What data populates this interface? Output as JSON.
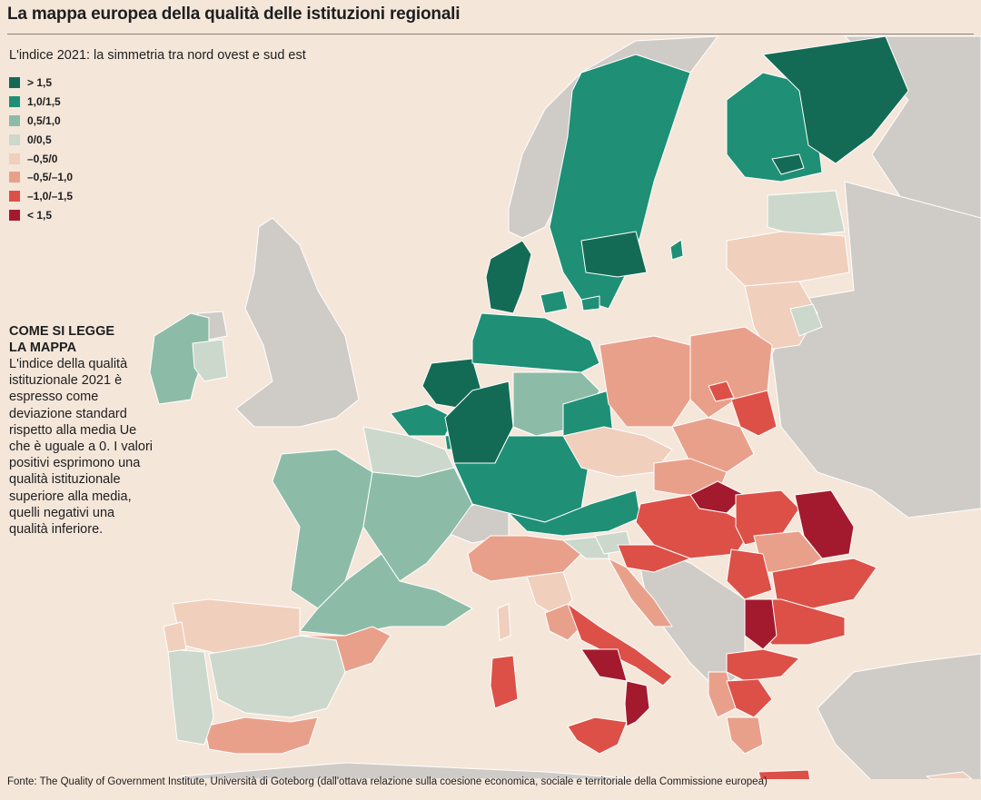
{
  "title": "La mappa europea della qualità delle istituzioni regionali",
  "subtitle": "L'indice 2021: la simmetria tra nord ovest e sud est",
  "colors": {
    "background": "#f5e6da",
    "sea": "#f5e6da",
    "non_eu": "#cfcbc7",
    "border": "#ffffff"
  },
  "legend": [
    {
      "label": "> 1,5",
      "color": "#146b55"
    },
    {
      "label": "1,0/1,5",
      "color": "#1f8f76"
    },
    {
      "label": "0,5/1,0",
      "color": "#8cbca8"
    },
    {
      "label": "0/0,5",
      "color": "#ccd8cc"
    },
    {
      "label": "–0,5/0",
      "color": "#f0cfbd"
    },
    {
      "label": "–0,5/–1,0",
      "color": "#e9a08b"
    },
    {
      "label": "–1,0/–1,5",
      "color": "#dc5048"
    },
    {
      "label": "< 1,5",
      "color": "#a31a2e"
    }
  ],
  "howto": {
    "heading": "COME SI LEGGE LA MAPPA",
    "body": "L'indice della qualità istituzionale 2021 è espresso come deviazione standard rispetto alla media Ue che è uguale a 0. I valori positivi esprimono una qualità istituzionale superiore alla media, quelli negativi una qualità inferiore."
  },
  "source": "Fonte: The Quality of Government Institute, Università di Goteborg (dall'ottava relazione sulla coesione economica, sociale e territoriale della Commissione europea)"
}
